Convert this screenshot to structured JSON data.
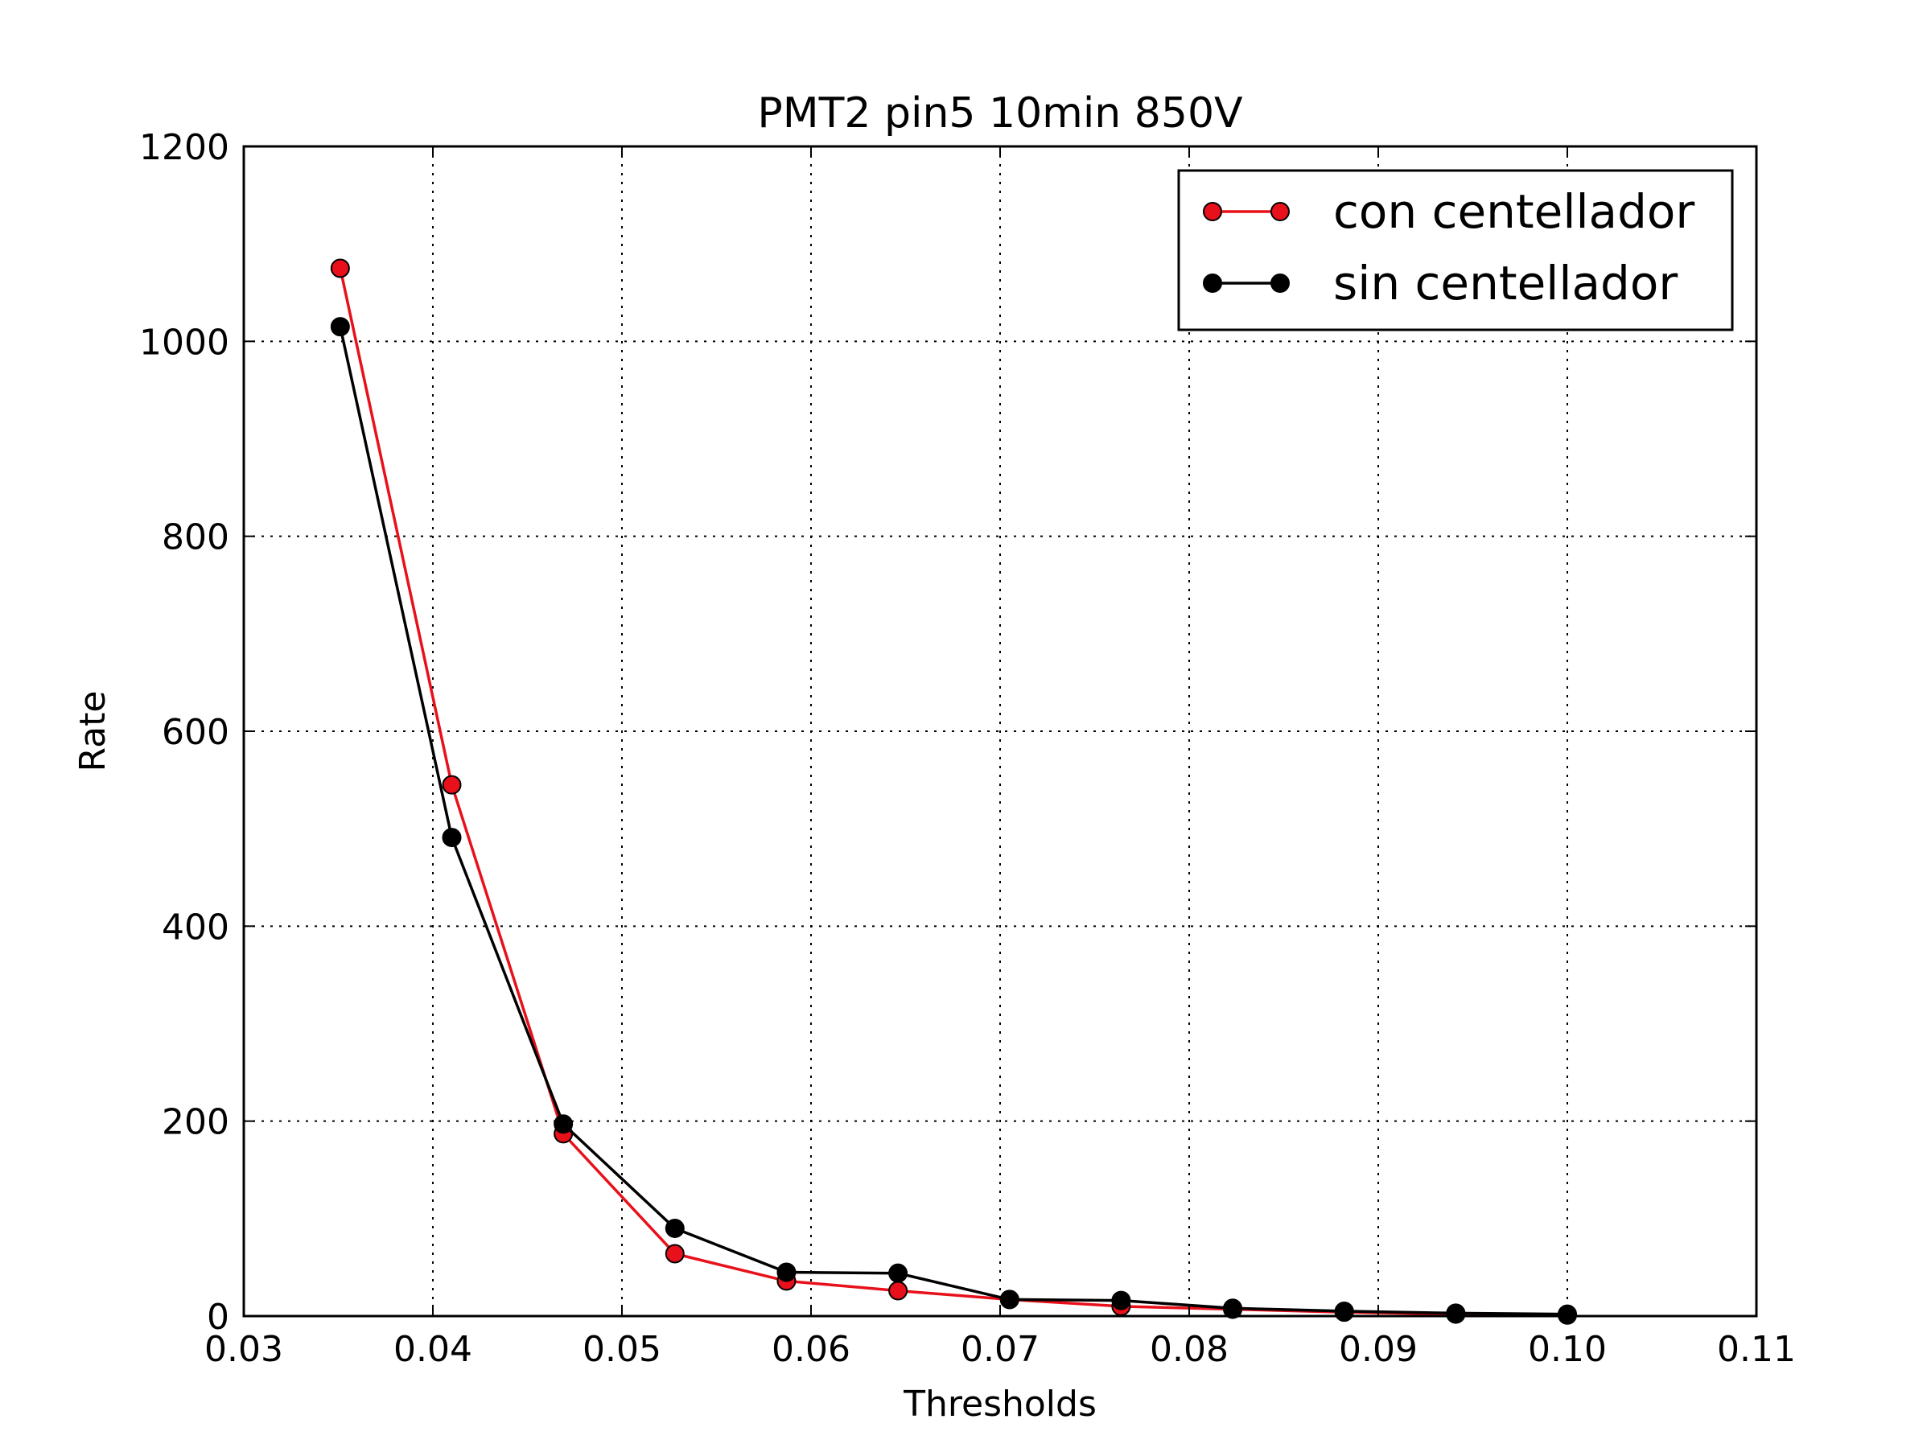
{
  "chart_data": {
    "type": "line",
    "title": "PMT2 pin5 10min 850V",
    "xlabel": "Thresholds",
    "ylabel": "Rate",
    "xlim": [
      0.03,
      0.11
    ],
    "ylim": [
      0,
      1200
    ],
    "x_ticks": [
      "0.03",
      "0.04",
      "0.05",
      "0.06",
      "0.07",
      "0.08",
      "0.09",
      "0.10",
      "0.11"
    ],
    "y_ticks": [
      "0",
      "200",
      "400",
      "600",
      "800",
      "1000",
      "1200"
    ],
    "grid": true,
    "legend_position": "top-right",
    "series": [
      {
        "name": "con centellador",
        "color": "#e8101a",
        "x": [
          0.0351,
          0.041,
          0.0469,
          0.0528,
          0.0587,
          0.0646,
          0.0705,
          0.0764,
          0.0823,
          0.0882,
          0.0941,
          0.1
        ],
        "y": [
          1075,
          545,
          187,
          64,
          36,
          26,
          17,
          10,
          7,
          4,
          2,
          1
        ]
      },
      {
        "name": "sin centellador",
        "color": "#000000",
        "x": [
          0.0351,
          0.041,
          0.0469,
          0.0528,
          0.0587,
          0.0646,
          0.0705,
          0.0764,
          0.0823,
          0.0882,
          0.0941,
          0.1
        ],
        "y": [
          1015,
          491,
          197,
          90,
          45,
          44,
          17,
          16,
          8,
          5,
          3,
          2
        ]
      }
    ]
  }
}
